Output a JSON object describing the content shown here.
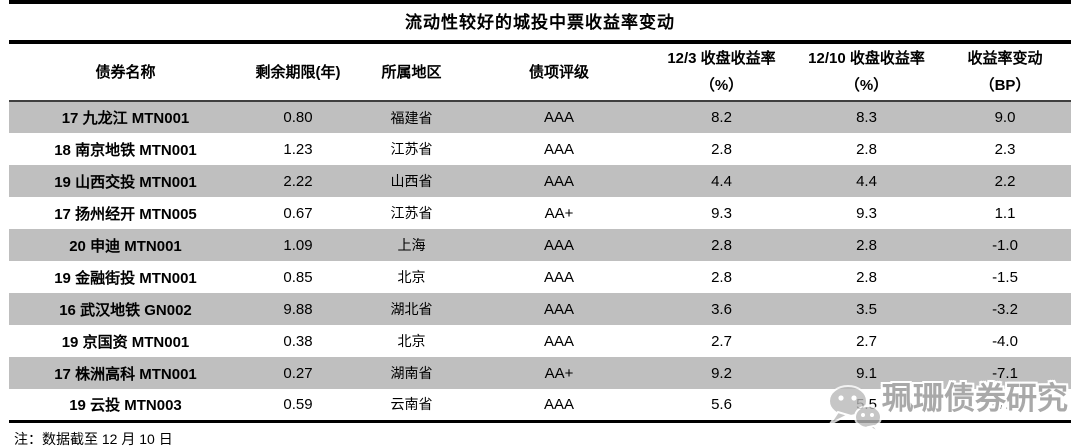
{
  "title": "流动性较好的城投中票收益率变动",
  "table": {
    "columns": [
      {
        "label": "债券名称",
        "unit": ""
      },
      {
        "label": "剩余期限(年)",
        "unit": ""
      },
      {
        "label": "所属地区",
        "unit": ""
      },
      {
        "label": "债项评级",
        "unit": ""
      },
      {
        "label": "12/3 收盘收益率",
        "unit": "（%）"
      },
      {
        "label": "12/10 收盘收益率",
        "unit": "（%）"
      },
      {
        "label": "收益率变动",
        "unit": "（BP）"
      }
    ],
    "rows": [
      {
        "name": "17 九龙江 MTN001",
        "maturity": "0.80",
        "region": "福建省",
        "rating": "AAA",
        "yield_dec3": "8.2",
        "yield_dec10": "8.3",
        "change_bp": "9.0"
      },
      {
        "name": "18 南京地铁 MTN001",
        "maturity": "1.23",
        "region": "江苏省",
        "rating": "AAA",
        "yield_dec3": "2.8",
        "yield_dec10": "2.8",
        "change_bp": "2.3"
      },
      {
        "name": "19 山西交投 MTN001",
        "maturity": "2.22",
        "region": "山西省",
        "rating": "AAA",
        "yield_dec3": "4.4",
        "yield_dec10": "4.4",
        "change_bp": "2.2"
      },
      {
        "name": "17 扬州经开 MTN005",
        "maturity": "0.67",
        "region": "江苏省",
        "rating": "AA+",
        "yield_dec3": "9.3",
        "yield_dec10": "9.3",
        "change_bp": "1.1"
      },
      {
        "name": "20 申迪 MTN001",
        "maturity": "1.09",
        "region": "上海",
        "rating": "AAA",
        "yield_dec3": "2.8",
        "yield_dec10": "2.8",
        "change_bp": "-1.0"
      },
      {
        "name": "19 金融街投 MTN001",
        "maturity": "0.85",
        "region": "北京",
        "rating": "AAA",
        "yield_dec3": "2.8",
        "yield_dec10": "2.8",
        "change_bp": "-1.5"
      },
      {
        "name": "16 武汉地铁 GN002",
        "maturity": "9.88",
        "region": "湖北省",
        "rating": "AAA",
        "yield_dec3": "3.6",
        "yield_dec10": "3.5",
        "change_bp": "-3.2"
      },
      {
        "name": "19 京国资 MTN001",
        "maturity": "0.38",
        "region": "北京",
        "rating": "AAA",
        "yield_dec3": "2.7",
        "yield_dec10": "2.7",
        "change_bp": "-4.0"
      },
      {
        "name": "17 株洲高科 MTN001",
        "maturity": "0.27",
        "region": "湖南省",
        "rating": "AA+",
        "yield_dec3": "9.2",
        "yield_dec10": "9.1",
        "change_bp": "-7.1"
      },
      {
        "name": "19 云投 MTN003",
        "maturity": "0.59",
        "region": "云南省",
        "rating": "AAA",
        "yield_dec3": "5.6",
        "yield_dec10": "5.5",
        "change_bp": "-7.5"
      }
    ]
  },
  "note": "注：数据截至 12 月 10 日",
  "watermark": {
    "icon": "wechat-icon",
    "text": "珮珊债券研究"
  },
  "colors": {
    "row_alt": "#bfbfbf",
    "rule": "#000000",
    "header_rule": "#404040",
    "watermark": "#a9a9a9"
  }
}
